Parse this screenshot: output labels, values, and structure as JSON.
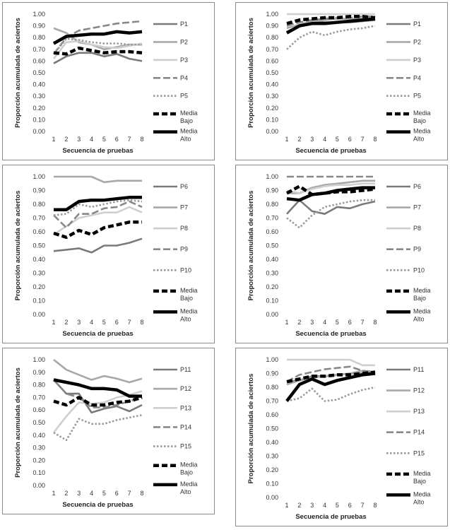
{
  "axis_x_label": "Secuencia de pruebas",
  "axis_y_label": "Proporción acumulada de aciertos",
  "chart_data": [
    {
      "type": "line",
      "panel": "top-left",
      "xlabel": "Secuencia de pruebas",
      "ylabel": "Proporción acumulada de aciertos",
      "x": [
        1,
        2,
        3,
        4,
        5,
        6,
        7,
        8
      ],
      "ylim": [
        0,
        1
      ],
      "yticks": [
        "0.00",
        "0.10",
        "0.20",
        "0.30",
        "0.40",
        "0.50",
        "0.60",
        "0.70",
        "0.80",
        "0.90",
        "1.00"
      ],
      "series": [
        {
          "name": "P1",
          "values": [
            0.58,
            0.64,
            0.67,
            0.67,
            0.64,
            0.66,
            0.62,
            0.6
          ],
          "color": "#7a7a7a",
          "style": "solid"
        },
        {
          "name": "P2",
          "values": [
            0.88,
            0.84,
            0.76,
            0.74,
            0.7,
            0.72,
            0.74,
            0.74
          ],
          "color": "#a8a8a8",
          "style": "solid"
        },
        {
          "name": "P3",
          "values": [
            0.62,
            0.76,
            0.77,
            0.74,
            0.72,
            0.71,
            0.73,
            0.75
          ],
          "color": "#cfcfcf",
          "style": "solid"
        },
        {
          "name": "P4",
          "values": [
            0.66,
            0.8,
            0.86,
            0.88,
            0.9,
            0.92,
            0.93,
            0.94
          ],
          "color": "#888888",
          "style": "longdash"
        },
        {
          "name": "P5",
          "values": [
            0.66,
            0.79,
            0.78,
            0.76,
            0.75,
            0.75,
            0.74,
            0.74
          ],
          "color": "#9a9a9a",
          "style": "dot"
        },
        {
          "name": "Media Bajo",
          "values": [
            0.67,
            0.66,
            0.71,
            0.69,
            0.67,
            0.68,
            0.68,
            0.67
          ],
          "color": "#000000",
          "style": "boldDash"
        },
        {
          "name": "Media Alto",
          "values": [
            0.75,
            0.81,
            0.82,
            0.83,
            0.83,
            0.85,
            0.84,
            0.85
          ],
          "color": "#000000",
          "style": "bold"
        }
      ]
    },
    {
      "type": "line",
      "panel": "top-right",
      "xlabel": "Secuencia de pruebas",
      "ylabel": "Proporción acumulada de aciertos",
      "x": [
        1,
        2,
        3,
        4,
        5,
        6,
        7,
        8
      ],
      "ylim": [
        0,
        1
      ],
      "yticks": [
        "0.00",
        "0.10",
        "0.20",
        "0.30",
        "0.40",
        "0.50",
        "0.60",
        "0.70",
        "0.80",
        "0.90",
        "1.00"
      ],
      "series": [
        {
          "name": "P1",
          "values": [
            0.85,
            0.9,
            0.94,
            0.93,
            0.93,
            0.93,
            0.94,
            0.95
          ],
          "color": "#7a7a7a",
          "style": "solid"
        },
        {
          "name": "P2",
          "values": [
            0.88,
            0.91,
            0.94,
            0.95,
            0.96,
            0.96,
            0.96,
            0.97
          ],
          "color": "#a8a8a8",
          "style": "solid"
        },
        {
          "name": "P3",
          "values": [
            1.0,
            1.0,
            1.0,
            1.0,
            1.0,
            1.0,
            1.0,
            1.0
          ],
          "color": "#cfcfcf",
          "style": "solid"
        },
        {
          "name": "P4",
          "values": [
            0.9,
            0.93,
            0.95,
            0.96,
            0.97,
            0.97,
            0.98,
            0.98
          ],
          "color": "#888888",
          "style": "longdash"
        },
        {
          "name": "P5",
          "values": [
            0.7,
            0.8,
            0.85,
            0.82,
            0.85,
            0.87,
            0.88,
            0.9
          ],
          "color": "#9a9a9a",
          "style": "dot"
        },
        {
          "name": "Media Bajo",
          "values": [
            0.92,
            0.95,
            0.96,
            0.97,
            0.97,
            0.98,
            0.98,
            0.97
          ],
          "color": "#000000",
          "style": "boldDash"
        },
        {
          "name": "Media Alto",
          "values": [
            0.84,
            0.9,
            0.92,
            0.92,
            0.93,
            0.94,
            0.95,
            0.96
          ],
          "color": "#000000",
          "style": "bold"
        }
      ]
    },
    {
      "type": "line",
      "panel": "middle-left",
      "xlabel": "Secuencia de pruebas",
      "ylabel": "Proporción acumulada de aciertos",
      "x": [
        1,
        2,
        3,
        4,
        5,
        6,
        7,
        8
      ],
      "ylim": [
        0,
        1
      ],
      "yticks": [
        "0.00",
        "0.10",
        "0.20",
        "0.30",
        "0.40",
        "0.50",
        "0.60",
        "0.70",
        "0.80",
        "0.90",
        "1.00"
      ],
      "series": [
        {
          "name": "P6",
          "values": [
            0.46,
            0.47,
            0.48,
            0.45,
            0.5,
            0.5,
            0.52,
            0.55
          ],
          "color": "#7a7a7a",
          "style": "solid"
        },
        {
          "name": "P7",
          "values": [
            1.0,
            1.0,
            1.0,
            1.0,
            0.96,
            0.97,
            0.97,
            0.97
          ],
          "color": "#a8a8a8",
          "style": "solid"
        },
        {
          "name": "P8",
          "values": [
            0.58,
            0.64,
            0.7,
            0.72,
            0.74,
            0.74,
            0.78,
            0.74
          ],
          "color": "#cfcfcf",
          "style": "solid"
        },
        {
          "name": "P9",
          "values": [
            0.72,
            0.63,
            0.73,
            0.73,
            0.77,
            0.78,
            0.82,
            0.78
          ],
          "color": "#888888",
          "style": "longdash"
        },
        {
          "name": "P10",
          "values": [
            0.72,
            0.73,
            0.8,
            0.78,
            0.8,
            0.82,
            0.83,
            0.82
          ],
          "color": "#9a9a9a",
          "style": "dot"
        },
        {
          "name": "Media Bajo",
          "values": [
            0.59,
            0.56,
            0.61,
            0.58,
            0.63,
            0.65,
            0.67,
            0.67
          ],
          "color": "#000000",
          "style": "boldDash"
        },
        {
          "name": "Media Alto",
          "values": [
            0.76,
            0.76,
            0.82,
            0.83,
            0.83,
            0.84,
            0.85,
            0.85
          ],
          "color": "#000000",
          "style": "bold"
        }
      ]
    },
    {
      "type": "line",
      "panel": "middle-right",
      "xlabel": "Secuencia de pruebas",
      "ylabel": "Proporción acumulada de aciertos",
      "x": [
        1,
        2,
        3,
        4,
        5,
        6,
        7,
        8
      ],
      "ylim": [
        0,
        1
      ],
      "yticks": [
        "0.00",
        "0.10",
        "0.20",
        "0.30",
        "0.40",
        "0.50",
        "0.60",
        "0.70",
        "0.80",
        "0.90",
        "1.00"
      ],
      "series": [
        {
          "name": "P6",
          "values": [
            0.73,
            0.83,
            0.75,
            0.73,
            0.78,
            0.77,
            0.8,
            0.82
          ],
          "color": "#7a7a7a",
          "style": "solid"
        },
        {
          "name": "P7",
          "values": [
            0.88,
            0.88,
            0.92,
            0.94,
            0.95,
            0.96,
            0.97,
            0.97
          ],
          "color": "#a8a8a8",
          "style": "solid"
        },
        {
          "name": "P8",
          "values": [
            0.9,
            0.88,
            0.91,
            0.93,
            0.94,
            0.94,
            0.95,
            0.95
          ],
          "color": "#cfcfcf",
          "style": "solid"
        },
        {
          "name": "P9",
          "values": [
            1.0,
            1.0,
            1.0,
            1.0,
            1.0,
            1.0,
            1.0,
            1.0
          ],
          "color": "#888888",
          "style": "longdash"
        },
        {
          "name": "P10",
          "values": [
            0.7,
            0.63,
            0.72,
            0.78,
            0.8,
            0.82,
            0.83,
            0.83
          ],
          "color": "#9a9a9a",
          "style": "dot"
        },
        {
          "name": "Media Bajo",
          "values": [
            0.88,
            0.93,
            0.87,
            0.88,
            0.89,
            0.89,
            0.9,
            0.91
          ],
          "color": "#000000",
          "style": "boldDash"
        },
        {
          "name": "Media Alto",
          "values": [
            0.84,
            0.83,
            0.87,
            0.88,
            0.9,
            0.91,
            0.92,
            0.92
          ],
          "color": "#000000",
          "style": "bold"
        }
      ]
    },
    {
      "type": "line",
      "panel": "bottom-left",
      "xlabel": "Secuencia de pruebas",
      "ylabel": "Proporción acumulada de aciertos",
      "x": [
        1,
        2,
        3,
        4,
        5,
        6,
        7,
        8
      ],
      "ylim": [
        0,
        1
      ],
      "yticks": [
        "0.00",
        "0.10",
        "0.20",
        "0.30",
        "0.40",
        "0.50",
        "0.60",
        "0.70",
        "0.80",
        "0.90",
        "1.00"
      ],
      "series": [
        {
          "name": "P11",
          "values": [
            0.84,
            0.73,
            0.73,
            0.58,
            0.61,
            0.63,
            0.59,
            0.64
          ],
          "color": "#7a7a7a",
          "style": "solid"
        },
        {
          "name": "P12",
          "values": [
            1.0,
            0.92,
            0.88,
            0.84,
            0.87,
            0.85,
            0.82,
            0.85
          ],
          "color": "#a8a8a8",
          "style": "solid"
        },
        {
          "name": "P13",
          "values": [
            0.42,
            0.55,
            0.66,
            0.65,
            0.66,
            0.7,
            0.72,
            0.75
          ],
          "color": "#cfcfcf",
          "style": "solid"
        },
        {
          "name": "P14",
          "values": [
            0.84,
            0.73,
            0.7,
            0.62,
            0.62,
            0.64,
            0.67,
            0.7
          ],
          "color": "#888888",
          "style": "longdash"
        },
        {
          "name": "P15",
          "values": [
            0.42,
            0.36,
            0.53,
            0.49,
            0.49,
            0.52,
            0.54,
            0.56
          ],
          "color": "#9a9a9a",
          "style": "dot"
        },
        {
          "name": "Media Bajo",
          "values": [
            0.67,
            0.64,
            0.7,
            0.64,
            0.64,
            0.66,
            0.67,
            0.7
          ],
          "color": "#000000",
          "style": "boldDash"
        },
        {
          "name": "Media Alto",
          "values": [
            0.84,
            0.82,
            0.8,
            0.77,
            0.77,
            0.76,
            0.71,
            0.71
          ],
          "color": "#000000",
          "style": "bold"
        }
      ]
    },
    {
      "type": "line",
      "panel": "bottom-right",
      "xlabel": "Secuencia de pruebas",
      "ylabel": "Proporción acumulada de aciertos",
      "x": [
        1,
        2,
        3,
        4,
        5,
        6,
        7,
        8
      ],
      "ylim": [
        0,
        1
      ],
      "yticks": [
        "0.00",
        "0.10",
        "0.20",
        "0.30",
        "0.40",
        "0.50",
        "0.60",
        "0.70",
        "0.80",
        "0.90",
        "1.00"
      ],
      "series": [
        {
          "name": "P11",
          "values": [
            0.84,
            0.85,
            0.88,
            0.88,
            0.89,
            0.9,
            0.9,
            0.91
          ],
          "color": "#7a7a7a",
          "style": "solid"
        },
        {
          "name": "P12",
          "values": [
            0.82,
            0.85,
            0.87,
            0.88,
            0.89,
            0.9,
            0.92,
            0.91
          ],
          "color": "#a8a8a8",
          "style": "solid"
        },
        {
          "name": "P13",
          "values": [
            1.0,
            1.0,
            1.0,
            1.0,
            1.0,
            1.0,
            0.96,
            0.96
          ],
          "color": "#cfcfcf",
          "style": "solid"
        },
        {
          "name": "P14",
          "values": [
            0.84,
            0.89,
            0.91,
            0.93,
            0.94,
            0.95,
            0.92,
            0.91
          ],
          "color": "#888888",
          "style": "longdash"
        },
        {
          "name": "P15",
          "values": [
            0.7,
            0.72,
            0.79,
            0.7,
            0.71,
            0.75,
            0.78,
            0.8
          ],
          "color": "#9a9a9a",
          "style": "dot"
        },
        {
          "name": "Media Bajo",
          "values": [
            0.84,
            0.86,
            0.88,
            0.88,
            0.89,
            0.89,
            0.9,
            0.91
          ],
          "color": "#000000",
          "style": "boldDash"
        },
        {
          "name": "Media Alto",
          "values": [
            0.7,
            0.82,
            0.86,
            0.82,
            0.85,
            0.87,
            0.89,
            0.9
          ],
          "color": "#000000",
          "style": "bold"
        }
      ]
    }
  ]
}
